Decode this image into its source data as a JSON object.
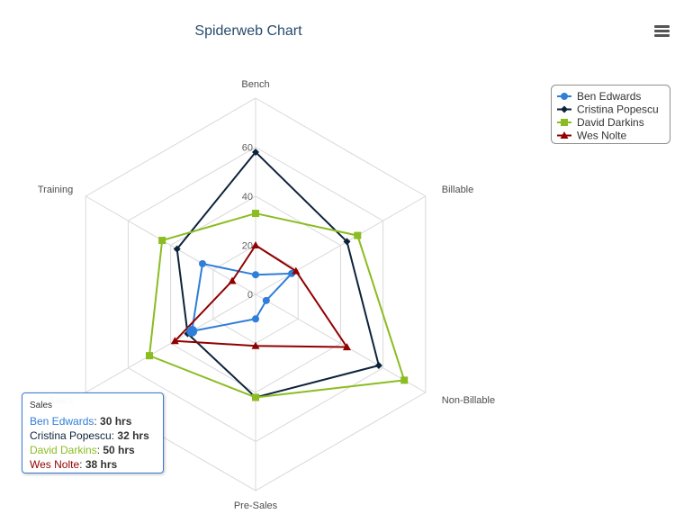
{
  "chart_data": {
    "type": "spiderweb",
    "title": "Spiderweb Chart",
    "categories": [
      "Bench",
      "Billable",
      "Non-Billable",
      "Pre-Sales",
      "Sales",
      "Training"
    ],
    "ylim": [
      0,
      80
    ],
    "yticks": [
      "0",
      "20",
      "40",
      "60"
    ],
    "grid": "polygon",
    "legend_position": "top-right",
    "series": [
      {
        "name": "Ben Edwards",
        "color": "#2f7ed8",
        "marker": "circle",
        "values": [
          8,
          17,
          5,
          10,
          30,
          25
        ]
      },
      {
        "name": "Cristina Popescu",
        "color": "#0d233a",
        "marker": "diamond",
        "values": [
          58,
          43,
          58,
          42,
          32,
          37
        ]
      },
      {
        "name": "David Darkins",
        "color": "#8bbc21",
        "marker": "square",
        "values": [
          33,
          48,
          70,
          42,
          50,
          44
        ]
      },
      {
        "name": "Wes Nolte",
        "color": "#910000",
        "marker": "triangle",
        "values": [
          20,
          19,
          43,
          21,
          38,
          11
        ]
      }
    ]
  },
  "tooltip": {
    "header": "Sales",
    "rows": [
      {
        "name": "Ben Edwards",
        "value": "30 hrs"
      },
      {
        "name": "Cristina Popescu",
        "value": "32 hrs"
      },
      {
        "name": "David Darkins",
        "value": "50 hrs"
      },
      {
        "name": "Wes Nolte",
        "value": "38 hrs"
      }
    ]
  },
  "menu_icon": "hamburger-menu-icon"
}
